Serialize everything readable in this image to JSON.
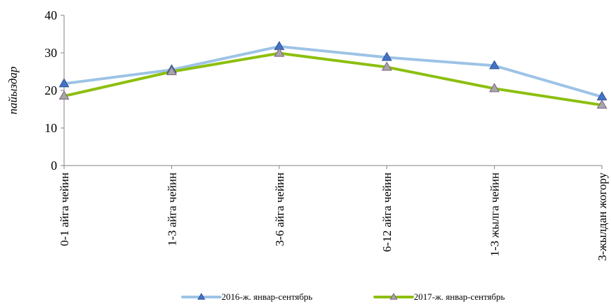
{
  "chart_data": {
    "type": "line",
    "title": "",
    "xlabel": "",
    "ylabel": "пайыздар",
    "ylim": [
      0,
      40
    ],
    "yticks": [
      0,
      10,
      20,
      30,
      40
    ],
    "grid": false,
    "legend_position": "bottom",
    "categories": [
      "0-1 айга чейин",
      "1-3 айга чейин",
      "3-6 айга чейин",
      "6-12 айга чейин",
      "1-3 жылга чейин",
      "3-жылдан жогору"
    ],
    "series": [
      {
        "name": "2016-ж. январ-сентябрь",
        "values": [
          21.8,
          25.5,
          31.7,
          28.8,
          26.6,
          18.3
        ],
        "line_color": "#9DC3E6",
        "marker_color": "#4472C4"
      },
      {
        "name": "2017-ж. январ-сентябрь",
        "values": [
          18.5,
          25.0,
          29.9,
          26.2,
          20.5,
          16.1
        ],
        "line_color": "#8CBF0E",
        "marker_color": "#A6A6A6"
      }
    ]
  }
}
